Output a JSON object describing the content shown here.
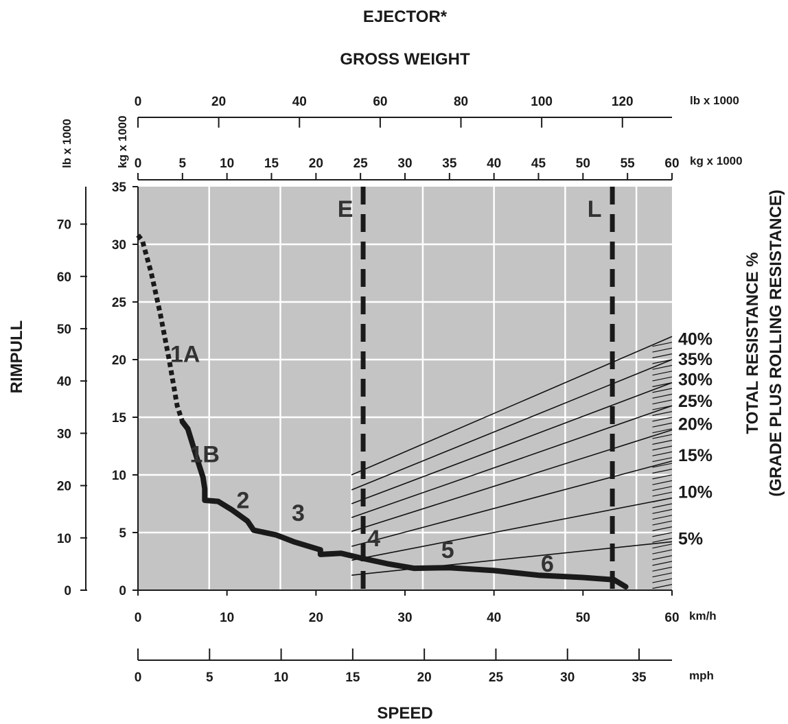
{
  "chart_data": {
    "type": "line",
    "title": "EJECTOR*",
    "subtitle": "GROSS WEIGHT",
    "xlabel": "SPEED",
    "ylabel": "RIMPULL",
    "y2label_line1": "TOTAL RESISTANCE %",
    "y2label_line2": "(GRADE PLUS ROLLING RESISTANCE)",
    "x_axis": {
      "unit": "km/h",
      "range": [
        0,
        60
      ],
      "ticks": [
        "0",
        "10",
        "20",
        "30",
        "40",
        "50",
        "60"
      ],
      "grid": [
        8,
        16,
        24,
        32,
        40,
        48,
        56
      ]
    },
    "mph_axis": {
      "unit": "mph",
      "range": [
        0,
        37.3
      ],
      "ticks": [
        "0",
        "5",
        "10",
        "15",
        "20",
        "25",
        "30",
        "35"
      ]
    },
    "y_axis": {
      "unit": "kg x 1000",
      "range": [
        0,
        35
      ],
      "ticks": [
        "0",
        "5",
        "10",
        "15",
        "20",
        "25",
        "30",
        "35"
      ]
    },
    "y_lb_axis": {
      "unit": "lb x 1000",
      "range": [
        0,
        77.16
      ],
      "ticks": [
        "0",
        "10",
        "20",
        "30",
        "40",
        "50",
        "60",
        "70"
      ]
    },
    "weight_lb_axis": {
      "unit": "lb x 1000",
      "range": [
        0,
        132.28
      ],
      "ticks": [
        "0",
        "20",
        "40",
        "60",
        "80",
        "100",
        "120"
      ]
    },
    "weight_kg_axis": {
      "unit": "kg x 1000",
      "range": [
        0,
        60
      ],
      "ticks": [
        "0",
        "5",
        "10",
        "15",
        "20",
        "25",
        "30",
        "35",
        "40",
        "45",
        "50",
        "55",
        "60"
      ]
    },
    "markers": [
      {
        "label": "E",
        "weight_kg": 25.3
      },
      {
        "label": "L",
        "weight_kg": 53.3
      }
    ],
    "rimpull_curve": {
      "dotted": [
        [
          0,
          30.8
        ],
        [
          0.5,
          30.3
        ],
        [
          1.5,
          27.5
        ],
        [
          2.5,
          24
        ],
        [
          3.5,
          20
        ],
        [
          4.4,
          16
        ],
        [
          5.0,
          14.6
        ]
      ],
      "solid": [
        [
          5.0,
          14.6
        ],
        [
          5.6,
          14.0
        ],
        [
          6.2,
          12.5
        ],
        [
          6.8,
          11.0
        ],
        [
          7.3,
          9.8
        ],
        [
          7.5,
          8.8
        ],
        [
          7.5,
          7.8
        ],
        [
          9.0,
          7.7
        ],
        [
          10.5,
          7.0
        ],
        [
          12.3,
          6.0
        ],
        [
          13.0,
          5.2
        ],
        [
          15.5,
          4.8
        ],
        [
          17.5,
          4.2
        ],
        [
          20.5,
          3.5
        ],
        [
          20.5,
          3.1
        ],
        [
          22.8,
          3.2
        ],
        [
          25.0,
          2.8
        ],
        [
          28.0,
          2.3
        ],
        [
          31.0,
          1.9
        ],
        [
          35.0,
          1.95
        ],
        [
          40.0,
          1.7
        ],
        [
          45.0,
          1.3
        ],
        [
          50.0,
          1.1
        ],
        [
          53.5,
          0.9
        ],
        [
          54.8,
          0.3
        ]
      ]
    },
    "gear_labels": [
      {
        "label": "1A",
        "x": 5.3,
        "y": 19.8
      },
      {
        "label": "1B",
        "x": 7.5,
        "y": 11.1
      },
      {
        "label": "2",
        "x": 11.8,
        "y": 7.1
      },
      {
        "label": "3",
        "x": 18.0,
        "y": 6.0
      },
      {
        "label": "4",
        "x": 26.5,
        "y": 3.8
      },
      {
        "label": "5",
        "x": 34.8,
        "y": 2.8
      },
      {
        "label": "6",
        "x": 46.0,
        "y": 1.6
      }
    ],
    "resistance_lines": [
      {
        "label": "40%",
        "start": 10.0,
        "end": 22.0
      },
      {
        "label": "35%",
        "start": 8.7,
        "end": 20.0
      },
      {
        "label": "30%",
        "start": 7.5,
        "end": 18.0
      },
      {
        "label": "25%",
        "start": 6.3,
        "end": 16.0
      },
      {
        "label": "20%",
        "start": 5.1,
        "end": 13.9
      },
      {
        "label": "15%",
        "start": 3.8,
        "end": 11.2
      },
      {
        "label": "10%",
        "start": 2.6,
        "end": 8.0
      },
      {
        "label": "5%",
        "start": 1.3,
        "end": 4.2
      }
    ]
  }
}
